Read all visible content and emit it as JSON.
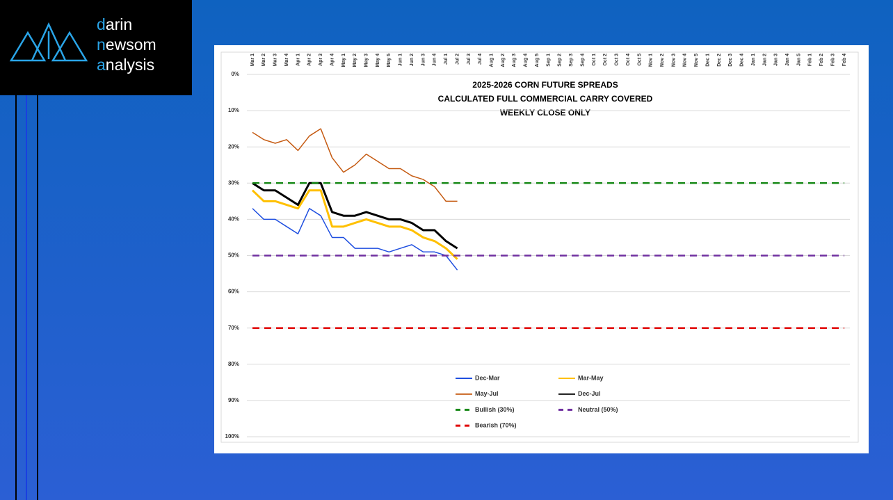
{
  "logo": [
    "darin",
    "newsom",
    "analysis"
  ],
  "chart_data": {
    "type": "line",
    "title": [
      "2025-2026 CORN FUTURE SPREADS",
      "CALCULATED FULL COMMERCIAL CARRY COVERED",
      "WEEKLY CLOSE ONLY"
    ],
    "categories": [
      "Mar 1",
      "Mar 2",
      "Mar 3",
      "Mar 4",
      "Apr 1",
      "Apr 2",
      "Apr 3",
      "Apr 4",
      "May 1",
      "May 2",
      "May 3",
      "May 4",
      "May 5",
      "Jun 1",
      "Jun 2",
      "Jun 3",
      "Jun 4",
      "Jul 1",
      "Jul 2",
      "Jul 3",
      "Jul 4",
      "Aug 1",
      "Aug 2",
      "Aug 3",
      "Aug 4",
      "Aug 5",
      "Sep 1",
      "Sep 2",
      "Sep 3",
      "Sep 4",
      "Oct 1",
      "Oct 2",
      "Oct 3",
      "Oct 4",
      "Oct 5",
      "Nov 1",
      "Nov 2",
      "Nov 3",
      "Nov 4",
      "Nov 5",
      "Dec 1",
      "Dec 2",
      "Dec 3",
      "Dec 4",
      "Jan 1",
      "Jan 2",
      "Jan 3",
      "Jan 4",
      "Jan 5",
      "Feb 1",
      "Feb 2",
      "Feb 3",
      "Feb 4"
    ],
    "ylim": [
      0,
      100
    ],
    "y_inverted": true,
    "x_axis_position": "top",
    "grid": true,
    "legend": "bottom",
    "yticks": [
      {
        "value": 0,
        "label": "0%"
      },
      {
        "value": 10,
        "label": "10%"
      },
      {
        "value": 20,
        "label": "20%"
      },
      {
        "value": 30,
        "label": "30%"
      },
      {
        "value": 40,
        "label": "40%"
      },
      {
        "value": 50,
        "label": "50%"
      },
      {
        "value": 60,
        "label": "60%"
      },
      {
        "value": 70,
        "label": "70%"
      },
      {
        "value": 80,
        "label": "80%"
      },
      {
        "value": 90,
        "label": "90%"
      },
      {
        "value": 100,
        "label": "100%"
      }
    ],
    "series": [
      {
        "name": "Dec-Mar",
        "color": "#1f4fe0",
        "line_width": 1.5,
        "dashed": false,
        "values": [
          37,
          40,
          40,
          42,
          44,
          37,
          39,
          45,
          45,
          48,
          48,
          48,
          49,
          48,
          47,
          49,
          49,
          50,
          54,
          null,
          null,
          null,
          null,
          null,
          null,
          null,
          null,
          null,
          null,
          null,
          null,
          null,
          null,
          null,
          null,
          null,
          null,
          null,
          null,
          null,
          null,
          null,
          null,
          null,
          null,
          null,
          null,
          null,
          null,
          null,
          null,
          null,
          null
        ]
      },
      {
        "name": "Mar-May",
        "color": "#ffc000",
        "line_width": 3,
        "dashed": false,
        "values": [
          32,
          35,
          35,
          36,
          37,
          32,
          32,
          42,
          42,
          41,
          40,
          41,
          42,
          42,
          43,
          45,
          46,
          48,
          51,
          null,
          null,
          null,
          null,
          null,
          null,
          null,
          null,
          null,
          null,
          null,
          null,
          null,
          null,
          null,
          null,
          null,
          null,
          null,
          null,
          null,
          null,
          null,
          null,
          null,
          null,
          null,
          null,
          null,
          null,
          null,
          null,
          null,
          null
        ]
      },
      {
        "name": "May-Jul",
        "color": "#c55a11",
        "line_width": 1.5,
        "dashed": false,
        "values": [
          16,
          18,
          19,
          18,
          21,
          17,
          15,
          23,
          27,
          25,
          22,
          24,
          26,
          26,
          28,
          29,
          31,
          35,
          35,
          null,
          null,
          null,
          null,
          null,
          null,
          null,
          null,
          null,
          null,
          null,
          null,
          null,
          null,
          null,
          null,
          null,
          null,
          null,
          null,
          null,
          null,
          null,
          null,
          null,
          null,
          null,
          null,
          null,
          null,
          null,
          null,
          null,
          null
        ]
      },
      {
        "name": "Dec-Jul",
        "color": "#000000",
        "line_width": 3,
        "dashed": false,
        "values": [
          30,
          32,
          32,
          34,
          36,
          30,
          30,
          38,
          39,
          39,
          38,
          39,
          40,
          40,
          41,
          43,
          43,
          46,
          48,
          null,
          null,
          null,
          null,
          null,
          null,
          null,
          null,
          null,
          null,
          null,
          null,
          null,
          null,
          null,
          null,
          null,
          null,
          null,
          null,
          null,
          null,
          null,
          null,
          null,
          null,
          null,
          null,
          null,
          null,
          null,
          null,
          null,
          null
        ]
      },
      {
        "name": "Bullish (30%)",
        "color": "#1a8a1a",
        "line_width": 2.5,
        "dashed": true,
        "values": [
          30,
          30,
          30,
          30,
          30,
          30,
          30,
          30,
          30,
          30,
          30,
          30,
          30,
          30,
          30,
          30,
          30,
          30,
          30,
          30,
          30,
          30,
          30,
          30,
          30,
          30,
          30,
          30,
          30,
          30,
          30,
          30,
          30,
          30,
          30,
          30,
          30,
          30,
          30,
          30,
          30,
          30,
          30,
          30,
          30,
          30,
          30,
          30,
          30,
          30,
          30,
          30,
          30
        ]
      },
      {
        "name": "Neutral (50%)",
        "color": "#7030a0",
        "line_width": 2.5,
        "dashed": true,
        "values": [
          50,
          50,
          50,
          50,
          50,
          50,
          50,
          50,
          50,
          50,
          50,
          50,
          50,
          50,
          50,
          50,
          50,
          50,
          50,
          50,
          50,
          50,
          50,
          50,
          50,
          50,
          50,
          50,
          50,
          50,
          50,
          50,
          50,
          50,
          50,
          50,
          50,
          50,
          50,
          50,
          50,
          50,
          50,
          50,
          50,
          50,
          50,
          50,
          50,
          50,
          50,
          50,
          50
        ]
      },
      {
        "name": "Bearish (70%)",
        "color": "#e00000",
        "line_width": 2.5,
        "dashed": true,
        "values": [
          70,
          70,
          70,
          70,
          70,
          70,
          70,
          70,
          70,
          70,
          70,
          70,
          70,
          70,
          70,
          70,
          70,
          70,
          70,
          70,
          70,
          70,
          70,
          70,
          70,
          70,
          70,
          70,
          70,
          70,
          70,
          70,
          70,
          70,
          70,
          70,
          70,
          70,
          70,
          70,
          70,
          70,
          70,
          70,
          70,
          70,
          70,
          70,
          70,
          70,
          70,
          70,
          70
        ]
      }
    ]
  }
}
